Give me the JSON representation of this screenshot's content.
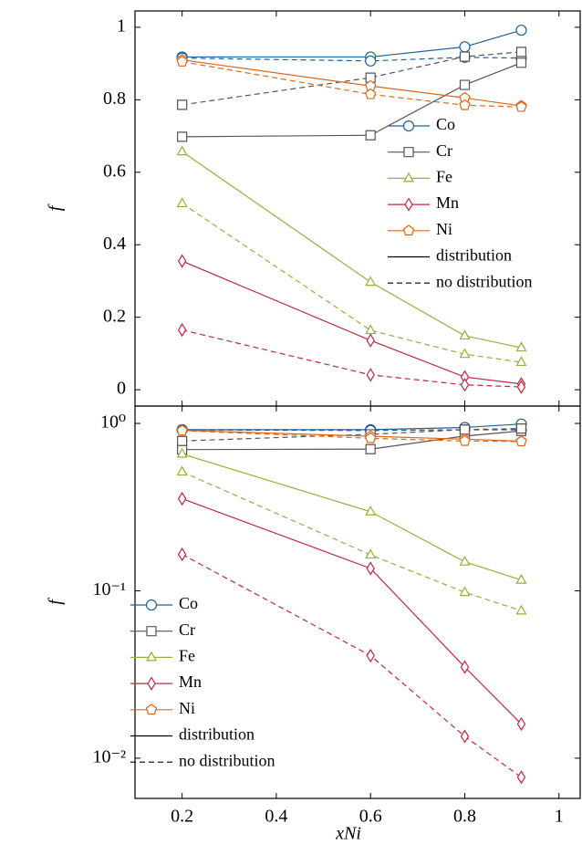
{
  "chart_data": [
    {
      "type": "line",
      "log_scale": false,
      "y_label": "f",
      "xtick_labels": false,
      "legend": "center right",
      "x": [
        0.2,
        0.6,
        0.8,
        0.92
      ],
      "xlim": [
        0.1,
        1.045
      ],
      "xticks": [
        0.2,
        0.4,
        0.6,
        0.8,
        1
      ],
      "ylim": [
        -0.045,
        1.045
      ],
      "yticks": [
        0,
        0.2,
        0.4,
        0.6,
        0.8,
        1
      ],
      "styles": [
        {
          "name": "distribution",
          "key": "distribution",
          "dash": "solid"
        },
        {
          "name": "no distribution",
          "key": "no_distribution",
          "dash": "dashed"
        }
      ],
      "series": [
        {
          "name": "Co",
          "color": "#1f5f9e",
          "marker": "circle",
          "distribution": [
            0.918,
            0.918,
            0.946,
            0.992
          ],
          "no_distribution": [
            0.915,
            0.907,
            0.917,
            0.915
          ]
        },
        {
          "name": "Cr",
          "color": "#555555",
          "marker": "square",
          "distribution": [
            0.698,
            0.702,
            0.841,
            0.902
          ],
          "no_distribution": [
            0.786,
            0.861,
            0.919,
            0.932
          ]
        },
        {
          "name": "Fe",
          "color": "#8db43c",
          "marker": "triangle",
          "distribution": [
            0.657,
            0.297,
            0.149,
            0.116
          ],
          "no_distribution": [
            0.514,
            0.164,
            0.098,
            0.076
          ]
        },
        {
          "name": "Mn",
          "color": "#c1283f",
          "marker": "diamond",
          "distribution": [
            0.355,
            0.136,
            0.035,
            0.016
          ],
          "no_distribution": [
            0.165,
            0.041,
            0.0135,
            0.0077
          ]
        },
        {
          "name": "Ni",
          "color": "#d8681f",
          "marker": "pentagon",
          "distribution": [
            0.91,
            0.838,
            0.805,
            0.783
          ],
          "no_distribution": [
            0.905,
            0.815,
            0.785,
            0.78
          ]
        }
      ]
    },
    {
      "type": "line",
      "log_scale": true,
      "y_label": "f",
      "x_label": "xNi",
      "xtick_labels": true,
      "legend": "lower left",
      "x": [
        0.2,
        0.6,
        0.8,
        0.92
      ],
      "xlim": [
        0.1,
        1.045
      ],
      "xticks": [
        0.2,
        0.4,
        0.6,
        0.8,
        1
      ],
      "ylim": [
        0.00575,
        1.27
      ],
      "yticks": [
        {
          "value": 0.01,
          "label": "10⁻²"
        },
        {
          "value": 0.1,
          "label": "10⁻¹"
        },
        {
          "value": 1,
          "label": "10⁰"
        }
      ],
      "styles": [
        {
          "name": "distribution",
          "key": "distribution",
          "dash": "solid"
        },
        {
          "name": "no distribution",
          "key": "no_distribution",
          "dash": "dashed"
        }
      ],
      "series": [
        {
          "name": "Co",
          "color": "#1f5f9e",
          "marker": "circle",
          "distribution": [
            0.918,
            0.918,
            0.946,
            0.992
          ],
          "no_distribution": [
            0.915,
            0.907,
            0.917,
            0.915
          ]
        },
        {
          "name": "Cr",
          "color": "#555555",
          "marker": "square",
          "distribution": [
            0.698,
            0.702,
            0.841,
            0.902
          ],
          "no_distribution": [
            0.786,
            0.861,
            0.919,
            0.932
          ]
        },
        {
          "name": "Fe",
          "color": "#8db43c",
          "marker": "triangle",
          "distribution": [
            0.657,
            0.297,
            0.149,
            0.116
          ],
          "no_distribution": [
            0.514,
            0.164,
            0.098,
            0.076
          ]
        },
        {
          "name": "Mn",
          "color": "#c1283f",
          "marker": "diamond",
          "distribution": [
            0.355,
            0.136,
            0.035,
            0.016
          ],
          "no_distribution": [
            0.165,
            0.041,
            0.0135,
            0.0077
          ]
        },
        {
          "name": "Ni",
          "color": "#d8681f",
          "marker": "pentagon",
          "distribution": [
            0.91,
            0.838,
            0.805,
            0.783
          ],
          "no_distribution": [
            0.905,
            0.815,
            0.785,
            0.78
          ]
        }
      ]
    }
  ]
}
